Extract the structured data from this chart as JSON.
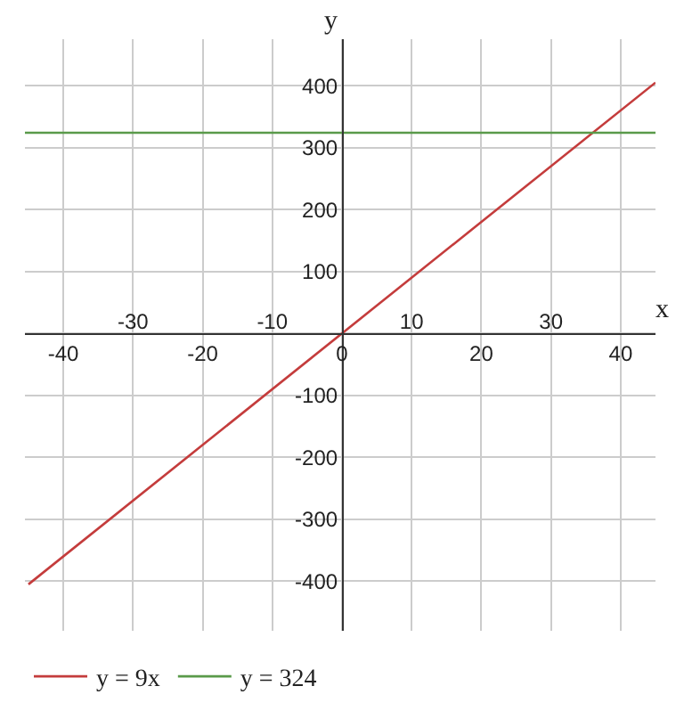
{
  "chart_data": {
    "type": "line",
    "xlabel": "x",
    "ylabel": "y",
    "xlim": [
      -45.5,
      45
    ],
    "ylim": [
      -480,
      475
    ],
    "xticks": [
      -40,
      -20,
      0,
      20,
      40
    ],
    "x2lim": [
      -45.5,
      45
    ],
    "x2ticks": [
      -30,
      -10,
      10,
      30
    ],
    "yticks": [
      -400,
      -300,
      -200,
      -100,
      {
        "value": 0,
        "label": null
      },
      100,
      200,
      300,
      400
    ],
    "series": [
      {
        "name": "y = 9x",
        "color": "#c43c3c",
        "x": [
          -45,
          45
        ],
        "values": [
          -405,
          405
        ]
      },
      {
        "name": "y = 324",
        "color": "#5a9a4a",
        "x": [
          -45.5,
          45
        ],
        "values": [
          324,
          324
        ]
      }
    ],
    "grid": true,
    "legend": "bottom",
    "marker": "none",
    "line_style": "solid"
  }
}
